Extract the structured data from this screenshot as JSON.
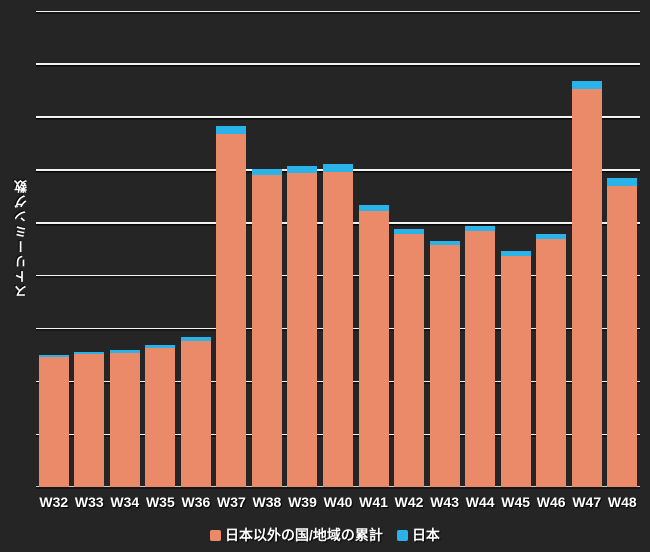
{
  "chart_data": {
    "type": "bar",
    "stacked": true,
    "title": "",
    "xlabel": "",
    "ylabel": "ストリーミング数",
    "categories": [
      "W32",
      "W33",
      "W34",
      "W35",
      "W36",
      "W37",
      "W38",
      "W39",
      "W40",
      "W41",
      "W42",
      "W43",
      "W44",
      "W45",
      "W46",
      "W47",
      "W48"
    ],
    "series": [
      {
        "name": "日本以外の国/地域の累計",
        "color": "#ea8a68",
        "values": [
          2.46,
          2.51,
          2.54,
          2.63,
          2.77,
          6.68,
          5.9,
          5.93,
          5.96,
          5.22,
          4.78,
          4.57,
          4.84,
          4.37,
          4.69,
          7.53,
          5.7
        ]
      },
      {
        "name": "日本",
        "color": "#29b3e8",
        "values": [
          0.04,
          0.05,
          0.05,
          0.05,
          0.06,
          0.14,
          0.11,
          0.14,
          0.15,
          0.11,
          0.09,
          0.09,
          0.09,
          0.09,
          0.09,
          0.15,
          0.15
        ]
      }
    ],
    "ylim": [
      0,
      9
    ],
    "gridline_intervals": 9,
    "y_tick_labels_visible": false,
    "gridlines": "horizontal",
    "legend_position": "bottom-center",
    "background_color": "#252525",
    "grid_color": "#f2f2f2",
    "text_color": "#ffffff"
  }
}
